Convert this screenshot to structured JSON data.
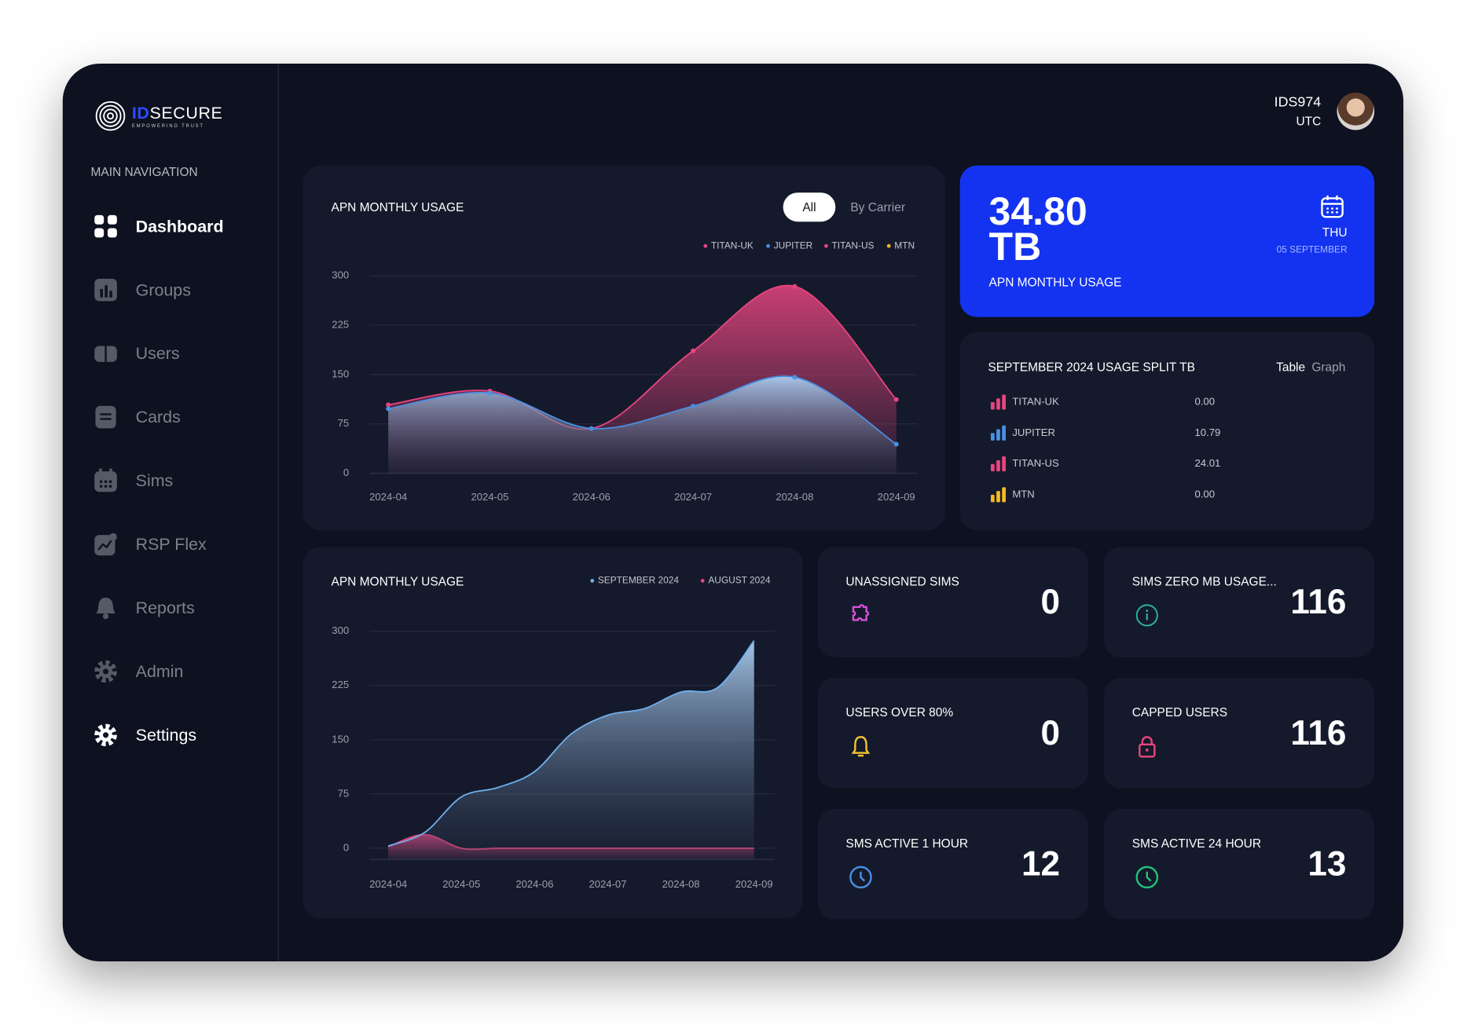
{
  "brand": {
    "name_a": "ID",
    "name_b": "SECURE",
    "tagline": "EMPOWERING TRUST"
  },
  "navigation": {
    "heading": "MAIN NAVIGATION",
    "items": [
      "Dashboard",
      "Groups",
      "Users",
      "Cards",
      "Sims",
      "RSP Flex",
      "Reports",
      "Admin",
      "Settings"
    ]
  },
  "user": {
    "id": "IDS974",
    "timezone": "UTC"
  },
  "chart_data": [
    {
      "type": "area",
      "title": "APN MONTHLY USAGE",
      "toggle": [
        "All",
        "By Carrier"
      ],
      "categories": [
        "2024-04",
        "2024-05",
        "2024-06",
        "2024-07",
        "2024-08",
        "2024-09"
      ],
      "series": [
        {
          "name": "TITAN-UK",
          "color": "#e8457f",
          "values": [
            104,
            125,
            68,
            186,
            284,
            112
          ]
        },
        {
          "name": "JUPITER",
          "color": "#4a90e2",
          "values": [
            98,
            122,
            68,
            102,
            146,
            44
          ]
        },
        {
          "name": "TITAN-US",
          "color": "#e8457f"
        },
        {
          "name": "MTN",
          "color": "#f5b921"
        }
      ],
      "ylim": [
        0,
        300
      ],
      "yticks": [
        0,
        75,
        150,
        225,
        300
      ],
      "grid": true
    },
    {
      "type": "area",
      "title": "APN MONTHLY USAGE",
      "categories": [
        "2024-04",
        null,
        "2024-05",
        null,
        "2024-06",
        null,
        "2024-07",
        null,
        "2024-08",
        null,
        "2024-09"
      ],
      "series": [
        {
          "name": "SEPTEMBER 2024",
          "color": "#6fb1f0",
          "values": [
            3,
            22,
            71,
            84,
            106,
            158,
            184,
            193,
            216,
            222,
            287
          ]
        },
        {
          "name": "AUGUST 2024",
          "color": "#e8457f",
          "values": [
            2,
            19,
            0,
            0,
            0,
            0,
            0,
            0,
            0,
            0,
            0
          ]
        }
      ],
      "ylim": [
        0,
        300
      ],
      "yticks": [
        0,
        75,
        150,
        225,
        300
      ],
      "grid": true
    }
  ],
  "usage_card": {
    "value": "34.80",
    "unit": "TB",
    "label": "APN MONTHLY USAGE",
    "day": "THU",
    "date": "05 SEPTEMBER"
  },
  "usage_split": {
    "title": "SEPTEMBER 2024 USAGE SPLIT TB",
    "tabs": [
      "Table",
      "Graph"
    ],
    "rows": [
      {
        "name": "TITAN-UK",
        "value": "0.00",
        "color": "#e8457f"
      },
      {
        "name": "JUPITER",
        "value": "10.79",
        "color": "#4a90e2"
      },
      {
        "name": "TITAN-US",
        "value": "24.01",
        "color": "#e8457f"
      },
      {
        "name": "MTN",
        "value": "0.00",
        "color": "#f5b921"
      }
    ]
  },
  "stats": [
    {
      "label": "UNASSIGNED SIMS",
      "value": 0
    },
    {
      "label": "SIMS ZERO MB USAGE...",
      "value": 116
    },
    {
      "label": "USERS OVER 80%",
      "value": 0
    },
    {
      "label": "CAPPED USERS",
      "value": 116
    },
    {
      "label": "SMS ACTIVE 1 HOUR",
      "value": 12
    },
    {
      "label": "SMS ACTIVE 24 HOUR",
      "value": 13
    }
  ]
}
